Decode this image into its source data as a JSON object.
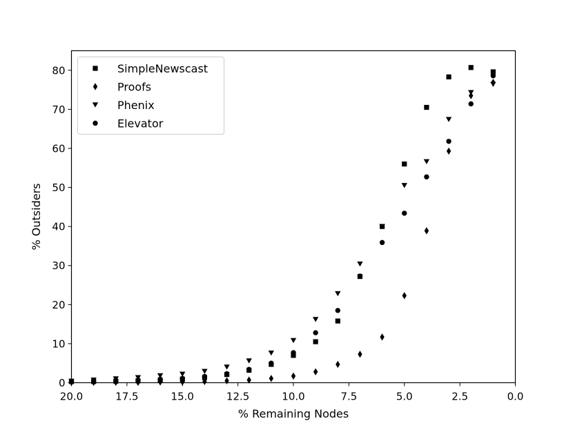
{
  "chart_data": {
    "type": "scatter",
    "xlabel": "% Remaining Nodes",
    "ylabel": "% Outsiders",
    "xlim": [
      20,
      0
    ],
    "ylim": [
      0,
      85
    ],
    "x_ticks": [
      "20.0",
      "17.5",
      "15.0",
      "12.5",
      "10.0",
      "7.5",
      "5.0",
      "2.5",
      "0.0"
    ],
    "y_ticks": [
      "0",
      "10",
      "20",
      "30",
      "40",
      "50",
      "60",
      "70",
      "80"
    ],
    "grid": false,
    "legend_position": "upper-left",
    "x": [
      20,
      19,
      18,
      17,
      16,
      15,
      14,
      13,
      12,
      11,
      10,
      9,
      8,
      7,
      6,
      5,
      4,
      3,
      2,
      1
    ],
    "series": [
      {
        "name": "SimpleNewscast",
        "marker": "square",
        "values": [
          0.3,
          0.3,
          0.4,
          0.5,
          0.6,
          0.9,
          1.3,
          2.1,
          3.2,
          4.7,
          7.0,
          10.5,
          15.8,
          27.2,
          40.0,
          56.0,
          70.5,
          78.3,
          80.7,
          79.6
        ]
      },
      {
        "name": "Proofs",
        "marker": "diamond",
        "values": [
          0.1,
          0.1,
          0.1,
          0.1,
          0.2,
          0.2,
          0.3,
          0.5,
          0.7,
          1.1,
          1.7,
          2.8,
          4.7,
          7.3,
          11.7,
          22.3,
          38.9,
          59.3,
          73.5,
          76.9
        ]
      },
      {
        "name": "Phenix",
        "marker": "triangle-down",
        "values": [
          0.4,
          0.7,
          1.0,
          1.3,
          1.8,
          2.2,
          2.9,
          4.0,
          5.6,
          7.6,
          10.8,
          16.2,
          22.8,
          30.4,
          40.0,
          50.5,
          56.6,
          67.4,
          74.3,
          76.4
        ]
      },
      {
        "name": "Elevator",
        "marker": "circle",
        "values": [
          0.2,
          0.3,
          0.4,
          0.6,
          0.9,
          1.1,
          1.6,
          2.3,
          3.4,
          5.0,
          7.7,
          12.8,
          18.5,
          27.3,
          35.9,
          43.4,
          52.7,
          61.8,
          71.4,
          78.6
        ]
      }
    ]
  }
}
